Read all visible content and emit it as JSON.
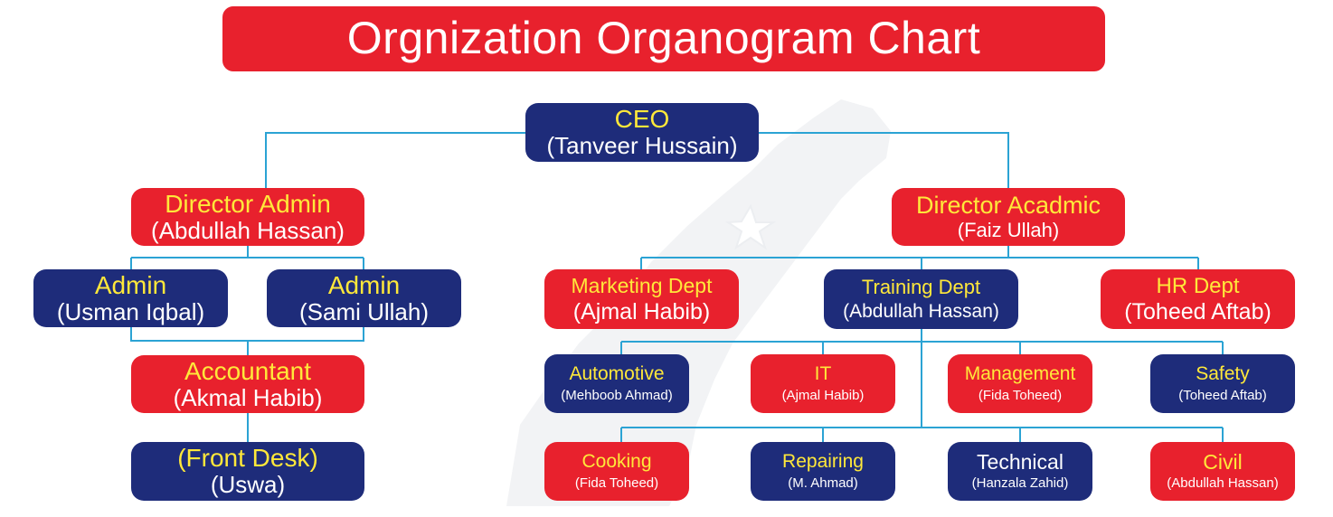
{
  "title": "Orgnization Organogram Chart",
  "colors": {
    "red": "#e8212d",
    "blue": "#1e2c7a",
    "role_text": "#ffe83a",
    "person_text": "#ffffff",
    "connector": "#2ba3d4"
  },
  "nodes": {
    "ceo": {
      "role": "CEO",
      "person": "(Tanveer Hussain)",
      "color": "blue"
    },
    "director_admin": {
      "role": "Director Admin",
      "person": "(Abdullah Hassan)",
      "color": "red"
    },
    "director_academic": {
      "role": "Director Acadmic",
      "person": "(Faiz Ullah)",
      "color": "red"
    },
    "admin_1": {
      "role": "Admin",
      "person": "(Usman Iqbal)",
      "color": "blue"
    },
    "admin_2": {
      "role": "Admin",
      "person": "(Sami Ullah)",
      "color": "blue"
    },
    "accountant": {
      "role": "Accountant",
      "person": "(Akmal Habib)",
      "color": "red"
    },
    "front_desk": {
      "role": "(Front Desk)",
      "person": "(Uswa)",
      "color": "blue"
    },
    "marketing": {
      "role": "Marketing Dept",
      "person": "(Ajmal Habib)",
      "color": "red"
    },
    "training": {
      "role": "Training Dept",
      "person": "(Abdullah Hassan)",
      "color": "blue"
    },
    "hr": {
      "role": "HR Dept",
      "person": "(Toheed Aftab)",
      "color": "red"
    },
    "automotive": {
      "role": "Automotive",
      "person": "(Mehboob Ahmad)",
      "color": "blue"
    },
    "it": {
      "role": "IT",
      "person": "(Ajmal Habib)",
      "color": "red"
    },
    "management": {
      "role": "Management",
      "person": "(Fida Toheed)",
      "color": "red"
    },
    "safety": {
      "role": "Safety",
      "person": "(Toheed Aftab)",
      "color": "blue"
    },
    "cooking": {
      "role": "Cooking",
      "person": "(Fida Toheed)",
      "color": "red"
    },
    "repairing": {
      "role": "Repairing",
      "person": "(M. Ahmad)",
      "color": "blue"
    },
    "technical": {
      "role": "Technical",
      "person": "(Hanzala Zahid)",
      "color": "blue"
    },
    "civil": {
      "role": "Civil",
      "person": "(Abdullah Hassan)",
      "color": "red"
    }
  },
  "edges": [
    [
      "ceo",
      "director_admin"
    ],
    [
      "ceo",
      "director_academic"
    ],
    [
      "director_admin",
      "admin_1"
    ],
    [
      "director_admin",
      "admin_2"
    ],
    [
      "admin_1",
      "accountant"
    ],
    [
      "admin_2",
      "accountant"
    ],
    [
      "accountant",
      "front_desk"
    ],
    [
      "director_academic",
      "marketing"
    ],
    [
      "director_academic",
      "training"
    ],
    [
      "director_academic",
      "hr"
    ],
    [
      "training",
      "automotive"
    ],
    [
      "training",
      "it"
    ],
    [
      "training",
      "management"
    ],
    [
      "training",
      "safety"
    ],
    [
      "training",
      "cooking"
    ],
    [
      "training",
      "repairing"
    ],
    [
      "training",
      "technical"
    ],
    [
      "training",
      "civil"
    ]
  ]
}
